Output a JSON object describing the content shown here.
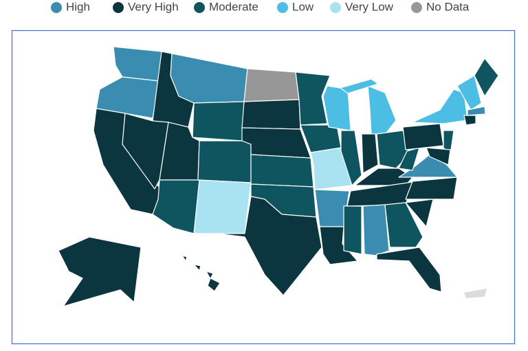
{
  "legend": {
    "items": [
      {
        "label": "High",
        "color": "#3a8db0"
      },
      {
        "label": "Very High",
        "color": "#0b3640"
      },
      {
        "label": "Moderate",
        "color": "#0e5560"
      },
      {
        "label": "Low",
        "color": "#4cbee3"
      },
      {
        "label": "Very Low",
        "color": "#a9e2f1"
      },
      {
        "label": "No Data",
        "color": "#979797"
      }
    ]
  }
}
